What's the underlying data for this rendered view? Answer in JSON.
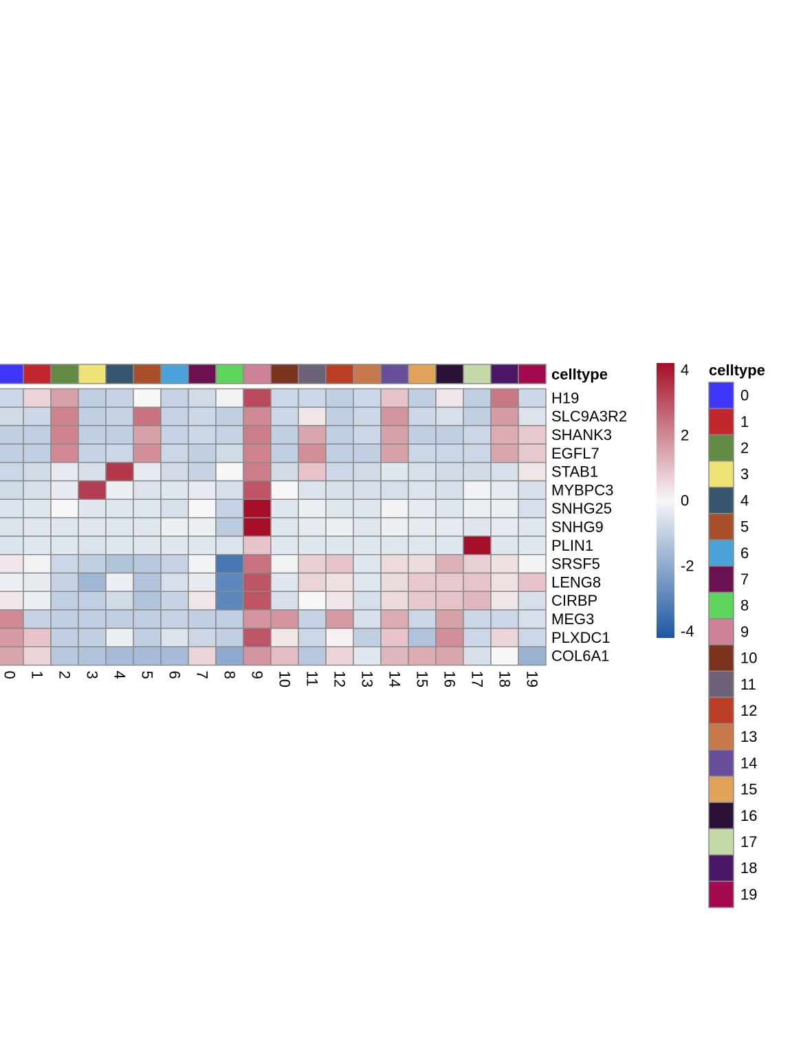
{
  "chart_data": {
    "type": "heatmap",
    "annotation_title": "celltype",
    "legend_title": "celltype",
    "columns": [
      "0",
      "1",
      "2",
      "3",
      "4",
      "5",
      "6",
      "7",
      "8",
      "9",
      "10",
      "11",
      "12",
      "13",
      "14",
      "15",
      "16",
      "17",
      "18",
      "19"
    ],
    "rows": [
      "H19",
      "SLC9A3R2",
      "SHANK3",
      "EGFL7",
      "STAB1",
      "MYBPC3",
      "SNHG25",
      "SNHG9",
      "PLIN1",
      "SRSF5",
      "LENG8",
      "CIRBP",
      "MEG3",
      "PLXDC1",
      "COL6A1"
    ],
    "values": [
      [
        -0.8,
        0.6,
        1.5,
        -1.0,
        -0.9,
        0.0,
        -0.9,
        -0.7,
        -0.1,
        3.0,
        -0.8,
        -0.8,
        -1.0,
        -0.8,
        0.9,
        -1.0,
        0.3,
        -1.0,
        2.2,
        -0.8
      ],
      [
        -0.7,
        -0.8,
        2.0,
        -1.0,
        -0.9,
        2.3,
        -0.9,
        -0.8,
        -1.0,
        1.9,
        -0.8,
        0.3,
        -1.0,
        -0.8,
        1.7,
        -0.8,
        -0.6,
        -1.0,
        1.6,
        -0.5
      ],
      [
        -1.0,
        -1.0,
        2.0,
        -1.0,
        -1.0,
        1.5,
        -0.9,
        -0.8,
        -0.9,
        2.1,
        -1.0,
        1.4,
        -1.0,
        -0.8,
        1.5,
        -1.0,
        -1.0,
        -0.8,
        1.3,
        0.8
      ],
      [
        -1.0,
        -1.0,
        1.9,
        -0.9,
        -0.8,
        1.8,
        -0.8,
        -1.0,
        -0.7,
        2.0,
        -1.0,
        1.8,
        -1.0,
        -1.0,
        1.5,
        -0.8,
        -0.8,
        -0.8,
        1.4,
        0.8
      ],
      [
        -0.8,
        -0.7,
        -0.3,
        -0.6,
        3.3,
        -0.3,
        -0.7,
        -0.9,
        0.0,
        2.1,
        -0.7,
        0.9,
        -0.8,
        -0.7,
        -0.4,
        -0.6,
        -0.7,
        -0.7,
        -0.6,
        0.3
      ],
      [
        -0.7,
        -0.6,
        -0.3,
        3.2,
        -0.2,
        -0.5,
        -0.4,
        -0.3,
        -0.6,
        2.8,
        0.0,
        -0.5,
        -0.6,
        -0.6,
        -0.6,
        -0.5,
        -0.6,
        -0.1,
        -0.3,
        -0.6
      ],
      [
        -0.5,
        -0.4,
        0.0,
        -0.4,
        -0.4,
        -0.4,
        -0.6,
        0.0,
        -0.9,
        4.0,
        -0.4,
        -0.2,
        -0.4,
        -0.4,
        -0.1,
        -0.3,
        -0.4,
        -0.2,
        -0.2,
        -0.6
      ],
      [
        -0.5,
        -0.4,
        -0.4,
        -0.4,
        -0.4,
        -0.4,
        -0.2,
        -0.2,
        -1.1,
        4.0,
        -0.4,
        -0.3,
        -0.2,
        -0.4,
        -0.2,
        -0.3,
        -0.3,
        -0.4,
        -0.3,
        -0.4
      ],
      [
        -0.5,
        -0.4,
        -0.4,
        -0.5,
        -0.4,
        -0.4,
        -0.4,
        -0.4,
        -0.5,
        0.9,
        -0.4,
        -0.4,
        -0.4,
        -0.4,
        -0.4,
        -0.4,
        -0.4,
        4.0,
        -0.4,
        -0.4
      ],
      [
        0.3,
        -0.1,
        -0.8,
        -1.0,
        -1.3,
        -1.2,
        -0.9,
        -0.1,
        -3.2,
        2.3,
        -0.1,
        0.7,
        0.9,
        -0.4,
        0.5,
        0.5,
        1.2,
        0.7,
        0.4,
        -0.1
      ],
      [
        -0.2,
        -0.3,
        -0.9,
        -1.6,
        -0.2,
        -1.3,
        -0.6,
        -0.3,
        -2.8,
        2.8,
        -0.4,
        0.6,
        0.4,
        -0.4,
        0.5,
        0.8,
        0.8,
        0.9,
        0.4,
        0.9
      ],
      [
        0.3,
        -0.2,
        -1.0,
        -1.0,
        -0.7,
        -1.3,
        -0.9,
        0.3,
        -2.8,
        2.8,
        -0.6,
        0.0,
        0.3,
        -0.6,
        0.5,
        0.8,
        0.9,
        1.1,
        0.3,
        -0.6
      ],
      [
        1.9,
        -0.9,
        -1.0,
        -1.0,
        -1.0,
        -1.0,
        -0.9,
        -1.0,
        -1.0,
        1.7,
        1.7,
        -0.9,
        1.6,
        -0.6,
        1.3,
        -0.8,
        1.5,
        -0.8,
        -0.8,
        -0.6
      ],
      [
        1.6,
        0.9,
        -1.0,
        -1.0,
        -0.2,
        -1.0,
        -0.5,
        -0.8,
        -1.0,
        2.8,
        0.3,
        -0.8,
        0.1,
        -1.0,
        0.9,
        -1.3,
        1.8,
        -0.8,
        0.6,
        -0.8
      ],
      [
        1.4,
        0.6,
        -1.2,
        -1.3,
        -1.5,
        -1.5,
        -1.5,
        0.6,
        -1.9,
        1.7,
        1.0,
        -1.2,
        0.6,
        -0.4,
        1.1,
        1.3,
        1.4,
        -0.6,
        0.0,
        -1.7
      ]
    ],
    "annotation_colors": [
      "#3D35F9",
      "#C1272D",
      "#618A44",
      "#EFE275",
      "#37566E",
      "#A9502B",
      "#4BA2D9",
      "#6A1150",
      "#5DD55B",
      "#CE8298",
      "#7B331D",
      "#6D6278",
      "#B93E23",
      "#C97A4D",
      "#664E9A",
      "#E1A25A",
      "#2A1138",
      "#C3DAA8",
      "#4B1767",
      "#A3094D"
    ],
    "scale": {
      "min": -4,
      "max": 4,
      "ticks": [
        4,
        2,
        0,
        -2,
        -4
      ]
    },
    "colormap": [
      "#1D57A2",
      "#F7F7F7",
      "#A50F27"
    ]
  }
}
